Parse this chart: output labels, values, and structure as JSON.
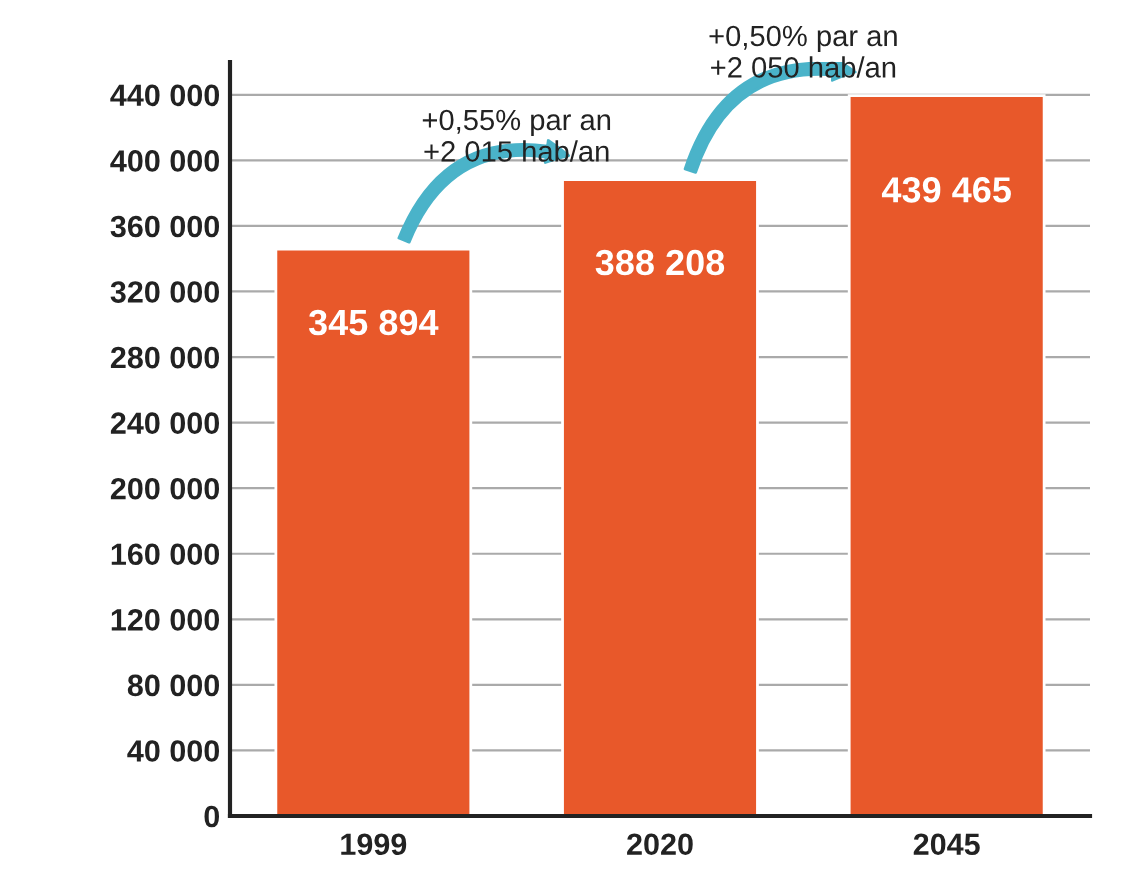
{
  "chart_data": {
    "type": "bar",
    "categories": [
      "1999",
      "2020",
      "2045"
    ],
    "values": [
      345894,
      388208,
      439465
    ],
    "value_labels": [
      "345 894",
      "388 208",
      "439 465"
    ],
    "color": "#e8582a",
    "ylim": [
      0,
      460000
    ],
    "yticks": [
      {
        "value": 0,
        "label": "0"
      },
      {
        "value": 40000,
        "label": "40 000"
      },
      {
        "value": 80000,
        "label": "80 000"
      },
      {
        "value": 120000,
        "label": "120 000"
      },
      {
        "value": 160000,
        "label": "160 000"
      },
      {
        "value": 200000,
        "label": "200 000"
      },
      {
        "value": 240000,
        "label": "240 000"
      },
      {
        "value": 280000,
        "label": "280 000"
      },
      {
        "value": 320000,
        "label": "320 000"
      },
      {
        "value": 360000,
        "label": "360 000"
      },
      {
        "value": 400000,
        "label": "400 000"
      },
      {
        "value": 440000,
        "label": "440 000"
      }
    ],
    "grid": "y",
    "annotations": [
      "+0,55% par an\n+2 015 hab/an",
      "+0,50% par an\n+2 050 hab/an"
    ]
  }
}
